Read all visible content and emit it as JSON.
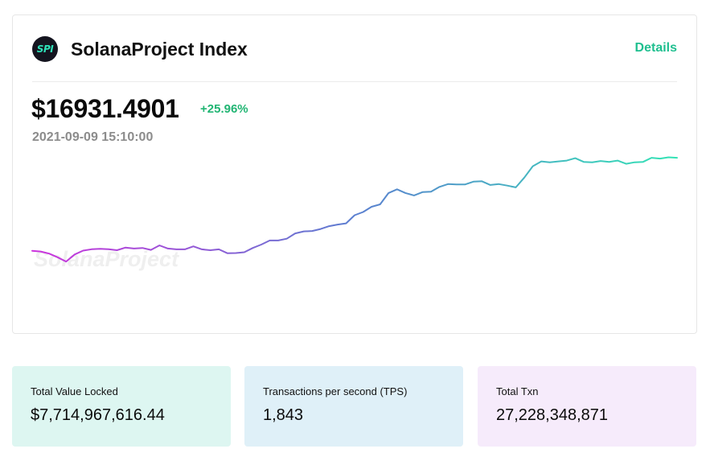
{
  "header": {
    "logo_text": "SPI",
    "title": "SolanaProject Index",
    "details_label": "Details"
  },
  "price": {
    "value": "$16931.4901",
    "change": "+25.96%",
    "timestamp": "2021-09-09 15:10:00"
  },
  "watermark": "SolanaProject",
  "colors": {
    "accent_green": "#1fbf8f",
    "change_green": "#21b573",
    "line_start": "#cc33dd",
    "line_mid": "#5b7fd0",
    "line_end": "#33e3b5",
    "tvl_bg": "#ddf6f1",
    "tps_bg": "#dff0f8",
    "txn_bg": "#f6ebfb"
  },
  "chart_data": {
    "type": "line",
    "title": "",
    "xlabel": "",
    "ylabel": "",
    "grid": false,
    "legend": "none",
    "series": [
      {
        "values": [
          0.246,
          0.241,
          0.226,
          0.2,
          0.17,
          0.22,
          0.247,
          0.257,
          0.26,
          0.257,
          0.25,
          0.269,
          0.262,
          0.266,
          0.252,
          0.284,
          0.262,
          0.256,
          0.256,
          0.277,
          0.256,
          0.25,
          0.256,
          0.229,
          0.23,
          0.236,
          0.266,
          0.29,
          0.319,
          0.319,
          0.331,
          0.369,
          0.383,
          0.386,
          0.4,
          0.42,
          0.431,
          0.44,
          0.497,
          0.52,
          0.557,
          0.574,
          0.654,
          0.68,
          0.654,
          0.637,
          0.66,
          0.663,
          0.697,
          0.717,
          0.714,
          0.714,
          0.734,
          0.737,
          0.711,
          0.717,
          0.706,
          0.694,
          0.763,
          0.843,
          0.877,
          0.871,
          0.877,
          0.883,
          0.9,
          0.874,
          0.871,
          0.88,
          0.874,
          0.883,
          0.86,
          0.871,
          0.874,
          0.903,
          0.897,
          0.906,
          0.903
        ]
      }
    ]
  },
  "stats": [
    {
      "label": "Total Value Locked",
      "value": "$7,714,967,616.44"
    },
    {
      "label": "Transactions per second (TPS)",
      "value": "1,843"
    },
    {
      "label": "Total Txn",
      "value": "27,228,348,871"
    }
  ]
}
